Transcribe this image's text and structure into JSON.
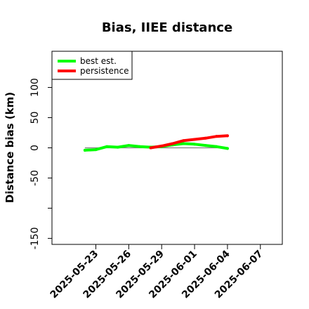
{
  "chart_data": {
    "type": "line",
    "title": "Bias, IIEE distance",
    "xlabel": "",
    "ylabel": "Distance bias (km)",
    "ylim": [
      -160,
      160
    ],
    "xlim": [
      "2025-05-19",
      "2025-06-09"
    ],
    "y_ticks": [
      -150,
      -50,
      0,
      50,
      100
    ],
    "y_tick_labels": [
      "-150",
      "-50",
      "0",
      "50",
      "100"
    ],
    "y_minor_ticks": [
      -100
    ],
    "x_ticks": [
      "2025-05-23",
      "2025-05-26",
      "2025-05-29",
      "2025-06-01",
      "2025-06-04",
      "2025-06-07"
    ],
    "reference_line": {
      "y": 0,
      "x_start": "2025-05-22",
      "x_end": "2025-06-04",
      "color": "#808080"
    },
    "legend_position": "top-left",
    "series": [
      {
        "name": "best est.",
        "color": "#00ff00",
        "x": [
          "2025-05-22",
          "2025-05-23",
          "2025-05-24",
          "2025-05-25",
          "2025-05-26",
          "2025-05-27",
          "2025-05-28",
          "2025-05-29",
          "2025-05-30",
          "2025-05-31",
          "2025-06-01",
          "2025-06-02",
          "2025-06-03",
          "2025-06-04"
        ],
        "values": [
          -4,
          -3,
          2,
          1,
          4,
          2,
          1,
          2,
          5,
          7,
          6,
          4,
          2,
          -1
        ]
      },
      {
        "name": "persistence",
        "color": "#ff0000",
        "x": [
          "2025-05-28",
          "2025-05-29",
          "2025-05-30",
          "2025-05-31",
          "2025-06-01",
          "2025-06-02",
          "2025-06-03",
          "2025-06-04"
        ],
        "values": [
          0,
          3,
          7,
          12,
          14,
          16,
          19,
          20
        ]
      }
    ]
  }
}
